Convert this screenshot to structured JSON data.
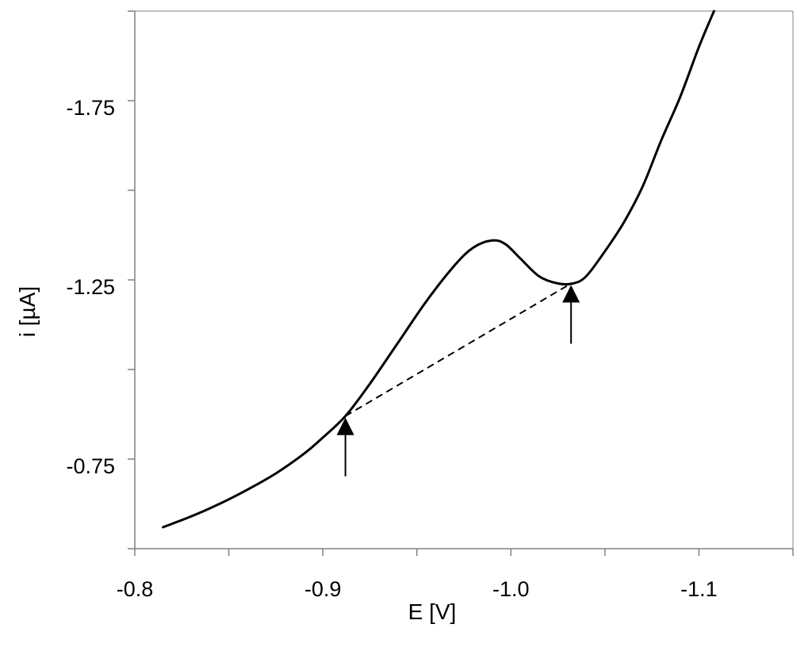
{
  "chart_data": {
    "type": "line",
    "xlabel": "E [V]",
    "ylabel": "i [µA]",
    "xlim": [
      -0.8,
      -1.15
    ],
    "ylim": [
      -0.5,
      -2.0
    ],
    "x_axis_reversed": true,
    "y_axis_reversed": true,
    "grid": false,
    "legend": "none",
    "x_ticks": [
      -0.8,
      -0.85,
      -0.9,
      -0.95,
      -1.0,
      -1.05,
      -1.1,
      -1.15
    ],
    "x_tick_labels": [
      "-0.8",
      "",
      "-0.9",
      "",
      "-1.0",
      "",
      "-1.1",
      ""
    ],
    "y_ticks": [
      -0.5,
      -0.75,
      -1.0,
      -1.25,
      -1.5,
      -1.75,
      -2.0
    ],
    "y_tick_labels": [
      "",
      "-0.75",
      "",
      "-1.25",
      "",
      "-1.75",
      ""
    ],
    "series": [
      {
        "x": [
          -0.815,
          -0.83,
          -0.845,
          -0.86,
          -0.875,
          -0.89,
          -0.9,
          -0.912,
          -0.925,
          -0.94,
          -0.955,
          -0.97,
          -0.98,
          -0.99,
          -0.997,
          -1.005,
          -1.015,
          -1.025,
          -1.033,
          -1.04,
          -1.05,
          -1.06,
          -1.07,
          -1.08,
          -1.09,
          -1.1,
          -1.108
        ],
        "y": [
          -0.56,
          -0.59,
          -0.625,
          -0.665,
          -0.71,
          -0.765,
          -0.81,
          -0.87,
          -0.96,
          -1.075,
          -1.19,
          -1.29,
          -1.34,
          -1.36,
          -1.35,
          -1.31,
          -1.26,
          -1.24,
          -1.24,
          -1.26,
          -1.33,
          -1.41,
          -1.51,
          -1.64,
          -1.76,
          -1.9,
          -2.0
        ]
      }
    ],
    "baseline": {
      "x": [
        -0.912,
        -1.032
      ],
      "y": [
        -0.87,
        -1.24
      ],
      "style": "dashed"
    },
    "annotations": [
      {
        "type": "arrow-up",
        "x": -0.912,
        "y": -0.87
      },
      {
        "type": "arrow-up",
        "x": -1.032,
        "y": -1.24
      }
    ],
    "colors": {
      "line": "#000000",
      "axis": "#808080"
    }
  }
}
